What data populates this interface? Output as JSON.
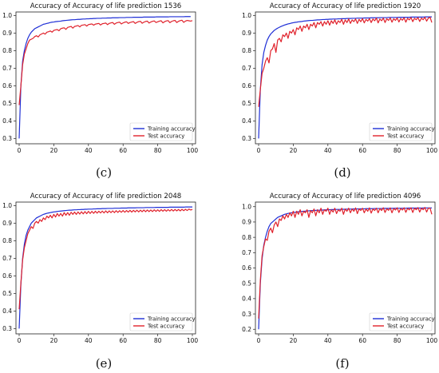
{
  "chart_data": [
    {
      "type": "line",
      "title": "Accuracy of Accuracy of life prediction 1536",
      "caption": "(c)",
      "xlim": [
        0,
        100
      ],
      "ylim": [
        0.27,
        1.02
      ],
      "x_ticks": [
        0,
        20,
        40,
        60,
        80,
        100
      ],
      "y_ticks": [
        0.3,
        0.4,
        0.5,
        0.6,
        0.7,
        0.8,
        0.9,
        1.0
      ],
      "y_tick_labels": [
        "0.3",
        "0.4",
        "0.5",
        "0.6",
        "0.7",
        "0.8",
        "0.9",
        "1.0"
      ],
      "grid": false,
      "legend_position": "bottom-right",
      "series": [
        {
          "name": "Training accuracy",
          "color": "#1f2fd6",
          "values": [
            0.3,
            0.6,
            0.74,
            0.8,
            0.84,
            0.87,
            0.89,
            0.905,
            0.915,
            0.925,
            0.93,
            0.935,
            0.94,
            0.945,
            0.95,
            0.952,
            0.955,
            0.957,
            0.96,
            0.962,
            0.963,
            0.965,
            0.966,
            0.967,
            0.968,
            0.97,
            0.971,
            0.972,
            0.973,
            0.974,
            0.975,
            0.976,
            0.976,
            0.977,
            0.978,
            0.978,
            0.979,
            0.98,
            0.98,
            0.981,
            0.981,
            0.982,
            0.982,
            0.983,
            0.983,
            0.984,
            0.984,
            0.984,
            0.985,
            0.985,
            0.985,
            0.986,
            0.986,
            0.986,
            0.987,
            0.987,
            0.987,
            0.987,
            0.988,
            0.988,
            0.988,
            0.988,
            0.989,
            0.989,
            0.989,
            0.989,
            0.99,
            0.99,
            0.99,
            0.99,
            0.99,
            0.99,
            0.991,
            0.991,
            0.991,
            0.991,
            0.991,
            0.991,
            0.991,
            0.992,
            0.992,
            0.992,
            0.992,
            0.992,
            0.992,
            0.992,
            0.992,
            0.993,
            0.993,
            0.993,
            0.993,
            0.993,
            0.993,
            0.993,
            0.993,
            0.993,
            0.994,
            0.994,
            0.994,
            0.994
          ]
        },
        {
          "name": "Test accuracy",
          "color": "#e0212b",
          "values": [
            0.49,
            0.6,
            0.72,
            0.78,
            0.81,
            0.84,
            0.86,
            0.865,
            0.87,
            0.88,
            0.885,
            0.878,
            0.89,
            0.895,
            0.9,
            0.894,
            0.905,
            0.908,
            0.912,
            0.905,
            0.915,
            0.918,
            0.92,
            0.913,
            0.925,
            0.928,
            0.93,
            0.921,
            0.932,
            0.935,
            0.938,
            0.928,
            0.938,
            0.94,
            0.943,
            0.935,
            0.944,
            0.946,
            0.948,
            0.94,
            0.948,
            0.95,
            0.952,
            0.945,
            0.951,
            0.953,
            0.955,
            0.946,
            0.953,
            0.955,
            0.957,
            0.948,
            0.955,
            0.958,
            0.96,
            0.95,
            0.957,
            0.96,
            0.962,
            0.952,
            0.958,
            0.962,
            0.964,
            0.955,
            0.96,
            0.963,
            0.965,
            0.955,
            0.961,
            0.965,
            0.967,
            0.956,
            0.962,
            0.966,
            0.968,
            0.957,
            0.963,
            0.967,
            0.969,
            0.96,
            0.964,
            0.968,
            0.97,
            0.958,
            0.965,
            0.969,
            0.971,
            0.959,
            0.966,
            0.97,
            0.972,
            0.96,
            0.967,
            0.971,
            0.973,
            0.961,
            0.968,
            0.972,
            0.97,
            0.968,
            0.971
          ]
        }
      ]
    },
    {
      "type": "line",
      "title": "Accuracy of Accuracy of life prediction 1920",
      "caption": "(d)",
      "xlim": [
        0,
        100
      ],
      "ylim": [
        0.27,
        1.02
      ],
      "x_ticks": [
        0,
        20,
        40,
        60,
        80,
        100
      ],
      "y_ticks": [
        0.3,
        0.4,
        0.5,
        0.6,
        0.7,
        0.8,
        0.9,
        1.0
      ],
      "y_tick_labels": [
        "0.3",
        "0.4",
        "0.5",
        "0.6",
        "0.7",
        "0.8",
        "0.9",
        "1.0"
      ],
      "grid": false,
      "legend_position": "bottom-right",
      "series": [
        {
          "name": "Training accuracy",
          "color": "#1f2fd6",
          "values": [
            0.3,
            0.58,
            0.72,
            0.79,
            0.83,
            0.86,
            0.88,
            0.895,
            0.905,
            0.915,
            0.922,
            0.928,
            0.933,
            0.938,
            0.942,
            0.946,
            0.949,
            0.952,
            0.954,
            0.957,
            0.959,
            0.961,
            0.962,
            0.964,
            0.965,
            0.966,
            0.968,
            0.969,
            0.97,
            0.971,
            0.972,
            0.972,
            0.973,
            0.974,
            0.975,
            0.975,
            0.976,
            0.977,
            0.977,
            0.978,
            0.978,
            0.979,
            0.979,
            0.98,
            0.98,
            0.98,
            0.981,
            0.981,
            0.982,
            0.982,
            0.982,
            0.983,
            0.983,
            0.983,
            0.984,
            0.984,
            0.984,
            0.985,
            0.985,
            0.985,
            0.985,
            0.986,
            0.986,
            0.986,
            0.986,
            0.987,
            0.987,
            0.987,
            0.987,
            0.987,
            0.988,
            0.988,
            0.988,
            0.988,
            0.988,
            0.989,
            0.989,
            0.989,
            0.989,
            0.989,
            0.989,
            0.99,
            0.99,
            0.99,
            0.99,
            0.99,
            0.99,
            0.99,
            0.991,
            0.991,
            0.991,
            0.991,
            0.991,
            0.991,
            0.991,
            0.991,
            0.992,
            0.992,
            0.992,
            0.992,
            0.992
          ]
        },
        {
          "name": "Test accuracy",
          "color": "#e0212b",
          "values": [
            0.48,
            0.58,
            0.67,
            0.7,
            0.74,
            0.76,
            0.73,
            0.8,
            0.81,
            0.84,
            0.79,
            0.86,
            0.87,
            0.85,
            0.89,
            0.88,
            0.9,
            0.87,
            0.91,
            0.9,
            0.92,
            0.89,
            0.93,
            0.92,
            0.94,
            0.91,
            0.94,
            0.93,
            0.95,
            0.92,
            0.95,
            0.94,
            0.96,
            0.93,
            0.96,
            0.95,
            0.965,
            0.94,
            0.965,
            0.95,
            0.97,
            0.945,
            0.97,
            0.955,
            0.975,
            0.95,
            0.97,
            0.96,
            0.978,
            0.95,
            0.975,
            0.96,
            0.98,
            0.955,
            0.975,
            0.965,
            0.98,
            0.955,
            0.978,
            0.965,
            0.982,
            0.958,
            0.978,
            0.968,
            0.982,
            0.96,
            0.98,
            0.97,
            0.985,
            0.958,
            0.98,
            0.97,
            0.985,
            0.96,
            0.982,
            0.972,
            0.986,
            0.962,
            0.982,
            0.972,
            0.986,
            0.963,
            0.983,
            0.973,
            0.987,
            0.962,
            0.984,
            0.975,
            0.988,
            0.965,
            0.984,
            0.976,
            0.988,
            0.966,
            0.985,
            0.976,
            0.99,
            0.968,
            0.985,
            0.99,
            0.96
          ]
        }
      ]
    },
    {
      "type": "line",
      "title": "Accuracy of Accuracy of life prediction 2048",
      "caption": "(e)",
      "xlim": [
        0,
        100
      ],
      "ylim": [
        0.27,
        1.02
      ],
      "x_ticks": [
        0,
        20,
        40,
        60,
        80,
        100
      ],
      "y_ticks": [
        0.3,
        0.4,
        0.5,
        0.6,
        0.7,
        0.8,
        0.9,
        1.0
      ],
      "y_tick_labels": [
        "0.3",
        "0.4",
        "0.5",
        "0.6",
        "0.7",
        "0.8",
        "0.9",
        "1.0"
      ],
      "grid": false,
      "legend_position": "bottom-right",
      "series": [
        {
          "name": "Training accuracy",
          "color": "#1f2fd6",
          "values": [
            0.3,
            0.55,
            0.7,
            0.78,
            0.83,
            0.86,
            0.88,
            0.9,
            0.91,
            0.92,
            0.93,
            0.935,
            0.94,
            0.945,
            0.95,
            0.953,
            0.956,
            0.958,
            0.96,
            0.962,
            0.964,
            0.965,
            0.967,
            0.968,
            0.969,
            0.97,
            0.971,
            0.972,
            0.973,
            0.974,
            0.974,
            0.975,
            0.976,
            0.976,
            0.977,
            0.977,
            0.978,
            0.978,
            0.979,
            0.979,
            0.98,
            0.98,
            0.98,
            0.981,
            0.981,
            0.982,
            0.982,
            0.982,
            0.983,
            0.983,
            0.983,
            0.984,
            0.984,
            0.984,
            0.984,
            0.985,
            0.985,
            0.985,
            0.985,
            0.986,
            0.986,
            0.986,
            0.986,
            0.987,
            0.987,
            0.987,
            0.987,
            0.987,
            0.988,
            0.988,
            0.988,
            0.988,
            0.988,
            0.989,
            0.989,
            0.989,
            0.989,
            0.989,
            0.989,
            0.99,
            0.99,
            0.99,
            0.99,
            0.99,
            0.99,
            0.99,
            0.99,
            0.991,
            0.991,
            0.991,
            0.991,
            0.991,
            0.991,
            0.991,
            0.991,
            0.991,
            0.992,
            0.992,
            0.992,
            0.992,
            0.992
          ]
        },
        {
          "name": "Test accuracy",
          "color": "#e0212b",
          "values": [
            0.41,
            0.56,
            0.69,
            0.76,
            0.8,
            0.84,
            0.86,
            0.88,
            0.87,
            0.9,
            0.91,
            0.9,
            0.92,
            0.91,
            0.93,
            0.92,
            0.94,
            0.93,
            0.945,
            0.93,
            0.95,
            0.935,
            0.955,
            0.94,
            0.955,
            0.94,
            0.96,
            0.945,
            0.96,
            0.945,
            0.962,
            0.95,
            0.963,
            0.95,
            0.964,
            0.952,
            0.965,
            0.953,
            0.966,
            0.954,
            0.967,
            0.955,
            0.967,
            0.956,
            0.968,
            0.957,
            0.968,
            0.958,
            0.969,
            0.958,
            0.97,
            0.959,
            0.97,
            0.96,
            0.97,
            0.96,
            0.971,
            0.961,
            0.971,
            0.962,
            0.972,
            0.962,
            0.972,
            0.963,
            0.973,
            0.963,
            0.973,
            0.964,
            0.974,
            0.964,
            0.974,
            0.965,
            0.975,
            0.965,
            0.975,
            0.966,
            0.975,
            0.966,
            0.976,
            0.967,
            0.976,
            0.967,
            0.977,
            0.968,
            0.977,
            0.968,
            0.977,
            0.969,
            0.978,
            0.969,
            0.978,
            0.97,
            0.978,
            0.97,
            0.979,
            0.971,
            0.979,
            0.972,
            0.98,
            0.975,
            0.978
          ]
        }
      ]
    },
    {
      "type": "line",
      "title": "Accuracy of Accuracy of life prediction 4096",
      "caption": "(f)",
      "xlim": [
        0,
        100
      ],
      "ylim": [
        0.17,
        1.03
      ],
      "x_ticks": [
        0,
        20,
        40,
        60,
        80,
        100
      ],
      "y_ticks": [
        0.2,
        0.3,
        0.4,
        0.5,
        0.6,
        0.7,
        0.8,
        0.9,
        1.0
      ],
      "y_tick_labels": [
        "0.2",
        "0.3",
        "0.4",
        "0.5",
        "0.6",
        "0.7",
        "0.8",
        "0.9",
        "1.0"
      ],
      "grid": false,
      "legend_position": "bottom-right",
      "series": [
        {
          "name": "Training accuracy",
          "color": "#1f2fd6",
          "values": [
            0.2,
            0.5,
            0.66,
            0.75,
            0.8,
            0.84,
            0.87,
            0.89,
            0.9,
            0.91,
            0.92,
            0.93,
            0.935,
            0.94,
            0.945,
            0.95,
            0.953,
            0.956,
            0.958,
            0.96,
            0.962,
            0.964,
            0.965,
            0.967,
            0.968,
            0.969,
            0.97,
            0.971,
            0.972,
            0.973,
            0.974,
            0.975,
            0.975,
            0.976,
            0.977,
            0.977,
            0.978,
            0.978,
            0.979,
            0.979,
            0.98,
            0.98,
            0.981,
            0.981,
            0.981,
            0.982,
            0.982,
            0.982,
            0.983,
            0.983,
            0.983,
            0.984,
            0.984,
            0.984,
            0.985,
            0.985,
            0.985,
            0.985,
            0.986,
            0.986,
            0.986,
            0.986,
            0.987,
            0.987,
            0.987,
            0.987,
            0.987,
            0.988,
            0.988,
            0.988,
            0.988,
            0.988,
            0.989,
            0.989,
            0.989,
            0.989,
            0.989,
            0.989,
            0.99,
            0.99,
            0.99,
            0.99,
            0.99,
            0.99,
            0.99,
            0.99,
            0.991,
            0.991,
            0.991,
            0.991,
            0.991,
            0.991,
            0.991,
            0.991,
            0.991,
            0.992,
            0.992,
            0.992,
            0.992,
            0.992,
            0.992
          ]
        },
        {
          "name": "Test accuracy",
          "color": "#e0212b",
          "values": [
            0.27,
            0.52,
            0.68,
            0.74,
            0.79,
            0.78,
            0.84,
            0.86,
            0.83,
            0.88,
            0.9,
            0.87,
            0.92,
            0.91,
            0.94,
            0.92,
            0.95,
            0.93,
            0.96,
            0.94,
            0.97,
            0.93,
            0.97,
            0.95,
            0.98,
            0.94,
            0.97,
            0.96,
            0.98,
            0.93,
            0.975,
            0.96,
            0.985,
            0.94,
            0.98,
            0.96,
            0.99,
            0.95,
            0.98,
            0.97,
            0.99,
            0.95,
            0.98,
            0.965,
            0.99,
            0.955,
            0.98,
            0.97,
            0.99,
            0.95,
            0.985,
            0.97,
            0.99,
            0.96,
            0.985,
            0.97,
            0.992,
            0.955,
            0.985,
            0.975,
            0.99,
            0.96,
            0.985,
            0.97,
            0.992,
            0.958,
            0.985,
            0.975,
            0.99,
            0.96,
            0.988,
            0.975,
            0.993,
            0.962,
            0.987,
            0.976,
            0.992,
            0.96,
            0.988,
            0.978,
            0.993,
            0.962,
            0.988,
            0.978,
            0.993,
            0.963,
            0.989,
            0.979,
            0.993,
            0.962,
            0.99,
            0.98,
            0.994,
            0.965,
            0.99,
            0.98,
            0.995,
            0.965,
            0.99,
            0.99,
            0.95
          ]
        }
      ]
    }
  ]
}
